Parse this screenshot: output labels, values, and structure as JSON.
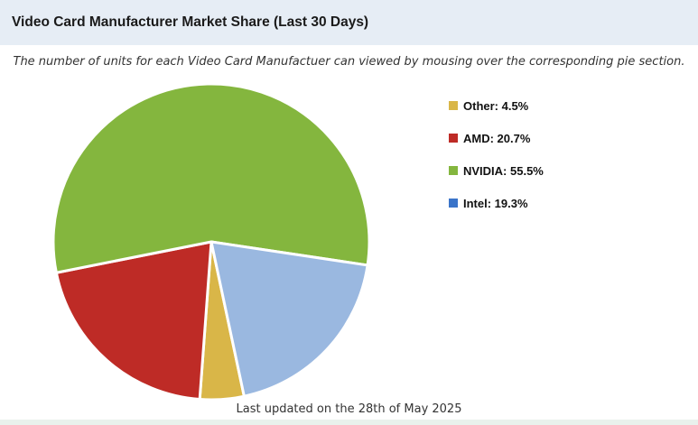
{
  "header": {
    "title": "Video Card Manufacturer Market Share (Last 30 Days)"
  },
  "subtitle": "The number of units for each Video Card Manufactuer can viewed by mousing over the corresponding pie section.",
  "footer": "Last updated on the 28th of May 2025",
  "chart_data": {
    "type": "pie",
    "title": "",
    "slices": [
      {
        "label": "Other: 4.5%",
        "name": "Other",
        "value": 4.5,
        "color": "#d9b648",
        "legend_color": "#d9b648"
      },
      {
        "label": "AMD: 20.7%",
        "name": "AMD",
        "value": 20.7,
        "color": "#be2b26",
        "legend_color": "#be2b26"
      },
      {
        "label": "NVIDIA: 55.5%",
        "name": "NVIDIA",
        "value": 55.5,
        "color": "#84b63e",
        "legend_color": "#84b63e"
      },
      {
        "label": "Intel: 19.3%",
        "name": "Intel",
        "value": 19.3,
        "color": "#9ab8e0",
        "legend_color": "#3a74c9"
      }
    ],
    "legend_placement": "right"
  }
}
